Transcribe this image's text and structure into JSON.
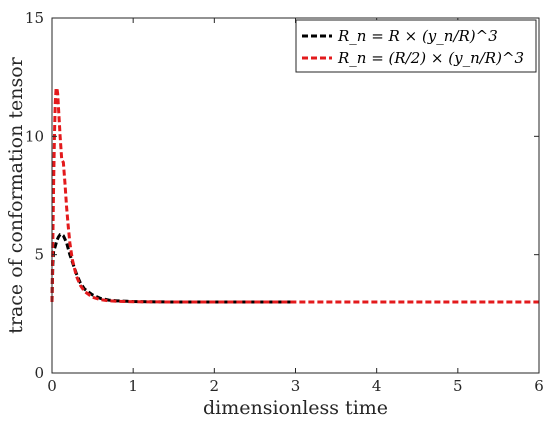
{
  "chart_data": {
    "type": "line",
    "title": "",
    "xlabel": "dimensionless time",
    "ylabel": "trace of conformation tensor",
    "xlim": [
      0,
      6
    ],
    "ylim": [
      0,
      15
    ],
    "xticks": [
      0,
      1,
      2,
      3,
      4,
      5,
      6
    ],
    "yticks": [
      0,
      5,
      10,
      15
    ],
    "grid": false,
    "legend_position": "top-right",
    "series": [
      {
        "name": "R_n = R × (y_n/R)^3",
        "color": "#000000",
        "dash": true,
        "x": [
          0,
          0.01,
          0.02,
          0.04,
          0.06,
          0.08,
          0.1,
          0.12,
          0.14,
          0.16,
          0.18,
          0.2,
          0.22,
          0.25,
          0.3,
          0.35,
          0.4,
          0.5,
          0.6,
          0.7,
          0.8,
          1.0,
          1.2,
          1.5,
          2.0,
          2.5,
          3.0
        ],
        "y": [
          3.0,
          4.6,
          5.15,
          5.35,
          5.6,
          5.75,
          5.85,
          5.85,
          5.8,
          5.65,
          5.5,
          5.25,
          5.0,
          4.7,
          4.2,
          3.8,
          3.55,
          3.3,
          3.15,
          3.08,
          3.05,
          3.02,
          3.01,
          3.0,
          3.0,
          3.0,
          3.0
        ]
      },
      {
        "name": "R_n = (R/2) × (y_n/R)^3",
        "color": "#e31a1c",
        "dash": true,
        "x": [
          0,
          0.01,
          0.02,
          0.03,
          0.04,
          0.05,
          0.06,
          0.07,
          0.08,
          0.1,
          0.12,
          0.14,
          0.16,
          0.18,
          0.2,
          0.22,
          0.25,
          0.3,
          0.35,
          0.4,
          0.5,
          0.6,
          0.7,
          0.8,
          1.0,
          1.5,
          2.0,
          3.0,
          4.0,
          5.0,
          6.0
        ],
        "y": [
          3.0,
          5.5,
          8.0,
          10.0,
          11.4,
          12.0,
          12.05,
          11.8,
          11.2,
          10.0,
          9.0,
          8.9,
          8.0,
          7.0,
          6.2,
          5.5,
          4.8,
          4.1,
          3.7,
          3.45,
          3.2,
          3.1,
          3.05,
          3.03,
          3.01,
          3.0,
          3.0,
          3.0,
          3.0,
          3.0,
          3.0
        ]
      }
    ]
  }
}
